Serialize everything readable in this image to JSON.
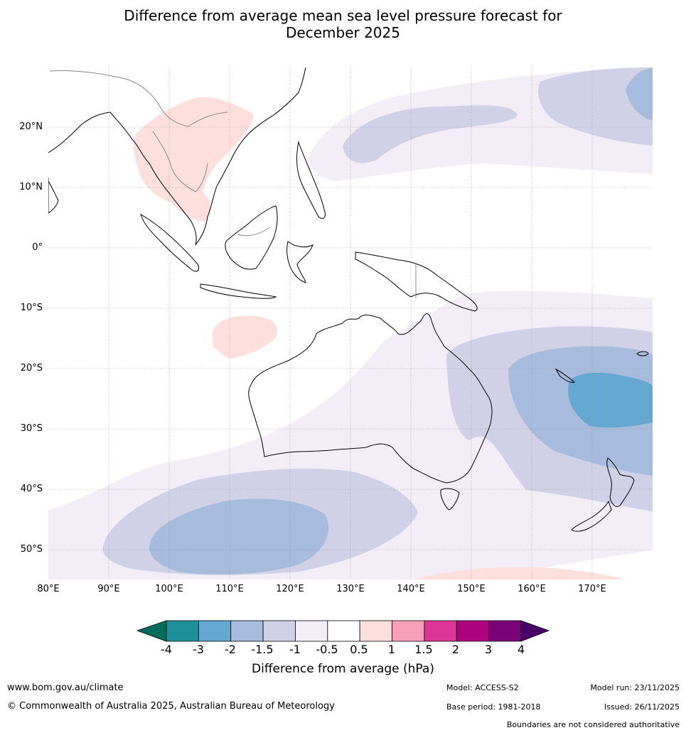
{
  "title_line1": "Difference from average mean sea level pressure forecast for",
  "title_line2": "December 2025",
  "latitude_labels": [
    "20°N",
    "10°N",
    "0°",
    "10°S",
    "20°S",
    "30°S",
    "40°S",
    "50°S"
  ],
  "longitude_labels": [
    "80°E",
    "90°E",
    "100°E",
    "110°E",
    "120°E",
    "130°E",
    "140°E",
    "150°E",
    "160°E",
    "170°E"
  ],
  "colorbar": {
    "title": "Difference from average (hPa)",
    "ticks": [
      "-4",
      "-3",
      "-2",
      "-1.5",
      "-1",
      "-0.5",
      "0.5",
      "1",
      "1.5",
      "2",
      "3",
      "4"
    ],
    "colors": [
      "#1d9099",
      "#64a8d1",
      "#a7bbdc",
      "#d0d1e6",
      "#f2edf6",
      "#ffffff",
      "#fde0dd",
      "#f99fb9",
      "#dd3497",
      "#ae017e",
      "#7a0177"
    ],
    "under_color": "#016c59",
    "over_color": "#49006a"
  },
  "field_colors": {
    "neg_0_5": "#f2edf6",
    "neg_1": "#d0d1e6",
    "neg_1_5": "#a7bbdc",
    "neg_2": "#64a8d1",
    "pos_0_5": "#fde0dd"
  },
  "footer": {
    "website": "www.bom.gov.au/climate",
    "copyright": "© Commonwealth of Australia 2025, Australian Bureau of Meteorology",
    "model": "Model: ACCESS-S2",
    "base_period": "Base period: 1981-2018",
    "model_run": "Model run: 23/11/2025",
    "issued": "Issued: 26/11/2025",
    "disclaimer": "Boundaries are not considered authoritative"
  }
}
